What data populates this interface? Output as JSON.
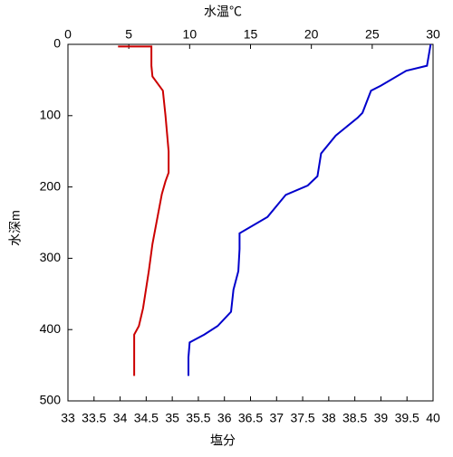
{
  "chart_data": {
    "type": "line",
    "y_label": "水深m",
    "x_label": "塩分",
    "x2_label": "水温℃",
    "ylim": [
      0,
      500
    ],
    "yticks": [
      0,
      100,
      200,
      300,
      400,
      500
    ],
    "y_inverted": true,
    "xlim": [
      33,
      40
    ],
    "xticks": [
      33,
      33.5,
      34,
      34.5,
      35,
      35.5,
      36,
      36.5,
      37,
      37.5,
      38,
      38.5,
      39,
      39.5,
      40
    ],
    "x2lim": [
      0,
      30
    ],
    "x2ticks": [
      0,
      5,
      10,
      15,
      20,
      25,
      30
    ],
    "x_label_color": "#cc0000",
    "x2_label_color": "#0000cc",
    "series": [
      {
        "color": "#cc0000",
        "axis": "x",
        "x": [
          33.96,
          34.6,
          34.6,
          34.62,
          34.82,
          34.87,
          34.93,
          34.93,
          34.87,
          34.8,
          34.62,
          34.55,
          34.44,
          34.36,
          34.27,
          34.27
        ],
        "values": [
          3,
          3,
          30,
          45,
          65,
          100,
          150,
          180,
          192,
          210,
          280,
          318,
          370,
          395,
          407,
          465
        ]
      },
      {
        "color": "#0000cc",
        "axis": "x2",
        "x": [
          29.8,
          29.5,
          27.8,
          25.7,
          24.9,
          24.2,
          23.8,
          22.0,
          20.8,
          20.5,
          19.7,
          17.9,
          16.4,
          14.1,
          14.1,
          14.0,
          13.6,
          13.4,
          12.3,
          11.2,
          10.0,
          9.9,
          9.9
        ],
        "values": [
          0,
          30,
          37,
          58,
          65,
          96,
          103,
          128,
          153,
          185,
          198,
          211,
          242,
          265,
          287,
          318,
          344,
          375,
          395,
          407,
          418,
          439,
          465
        ]
      }
    ]
  }
}
